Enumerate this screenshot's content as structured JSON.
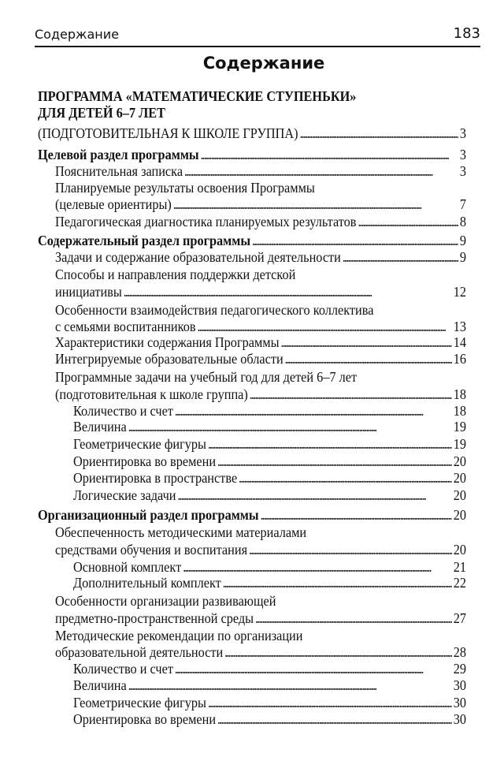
{
  "header": {
    "section": "Содержание",
    "page_number": "183"
  },
  "title": "Содержание",
  "entries": [
    {
      "lines": [
        "ПРОГРАММА «МАТЕМАТИЧЕСКИЕ СТУПЕНЬКИ»",
        "ДЛЯ ДЕТЕЙ 6–7 ЛЕТ"
      ],
      "level": 0,
      "bold": true,
      "page": ""
    },
    {
      "lines": [
        "(ПОДГОТОВИТЕЛЬНАЯ К ШКОЛЕ ГРУППА)"
      ],
      "level": 0,
      "bold": false,
      "page": "3"
    },
    {
      "lines": [
        "Целевой раздел программы"
      ],
      "level": 0,
      "bold": true,
      "page": "3"
    },
    {
      "lines": [
        "Пояснительная записка"
      ],
      "level": 1,
      "page": "3"
    },
    {
      "lines": [
        "Планируемые результаты освоения Программы",
        "(целевые ориентиры)"
      ],
      "level": 1,
      "page": "7"
    },
    {
      "lines": [
        "Педагогическая диагностика планируемых результатов"
      ],
      "level": 1,
      "page": "8"
    },
    {
      "lines": [
        "Содержательный раздел программы"
      ],
      "level": 0,
      "bold": true,
      "page": "9"
    },
    {
      "lines": [
        "Задачи и содержание образовательной деятельности"
      ],
      "level": 1,
      "page": "9"
    },
    {
      "lines": [
        "Способы и направления поддержки детской",
        "инициативы"
      ],
      "level": 1,
      "page": "12"
    },
    {
      "lines": [
        "Особенности взаимодействия педагогического коллектива",
        "с семьями воспитанников"
      ],
      "level": 1,
      "page": "13"
    },
    {
      "lines": [
        "Характеристики содержания Программы"
      ],
      "level": 1,
      "page": "14"
    },
    {
      "lines": [
        "Интегрируемые образовательные области"
      ],
      "level": 1,
      "page": "16"
    },
    {
      "lines": [
        "Программные задачи на учебный год для детей 6–7 лет",
        "(подготовительная к школе группа)"
      ],
      "level": 1,
      "page": "18"
    },
    {
      "lines": [
        "Количество и счет"
      ],
      "level": 2,
      "page": "18"
    },
    {
      "lines": [
        "Величина"
      ],
      "level": 2,
      "page": "19"
    },
    {
      "lines": [
        "Геометрические фигуры"
      ],
      "level": 2,
      "page": "19"
    },
    {
      "lines": [
        "Ориентировка во времени"
      ],
      "level": 2,
      "page": "20"
    },
    {
      "lines": [
        "Ориентировка в пространстве"
      ],
      "level": 2,
      "page": "20"
    },
    {
      "lines": [
        "Логические задачи"
      ],
      "level": 2,
      "page": "20"
    },
    {
      "lines": [
        "Организационный раздел программы"
      ],
      "level": 0,
      "bold": true,
      "page": "20"
    },
    {
      "lines": [
        "Обеспеченность методическими материалами",
        "средствами обучения и воспитания"
      ],
      "level": 1,
      "page": "20"
    },
    {
      "lines": [
        "Основной комплект"
      ],
      "level": 2,
      "page": "21"
    },
    {
      "lines": [
        "Дополнительный комплект"
      ],
      "level": 2,
      "page": "22"
    },
    {
      "lines": [
        "Особенности организации развивающей",
        "предметно-пространственной среды"
      ],
      "level": 1,
      "page": "27"
    },
    {
      "lines": [
        "Методические рекомендации по организации",
        "образовательной деятельности"
      ],
      "level": 1,
      "page": "28"
    },
    {
      "lines": [
        "Количество и счет"
      ],
      "level": 2,
      "page": "29"
    },
    {
      "lines": [
        "Величина"
      ],
      "level": 2,
      "page": "30"
    },
    {
      "lines": [
        "Геометрические фигуры"
      ],
      "level": 2,
      "page": "30"
    },
    {
      "lines": [
        "Ориентировка во времени"
      ],
      "level": 2,
      "page": "30"
    }
  ]
}
